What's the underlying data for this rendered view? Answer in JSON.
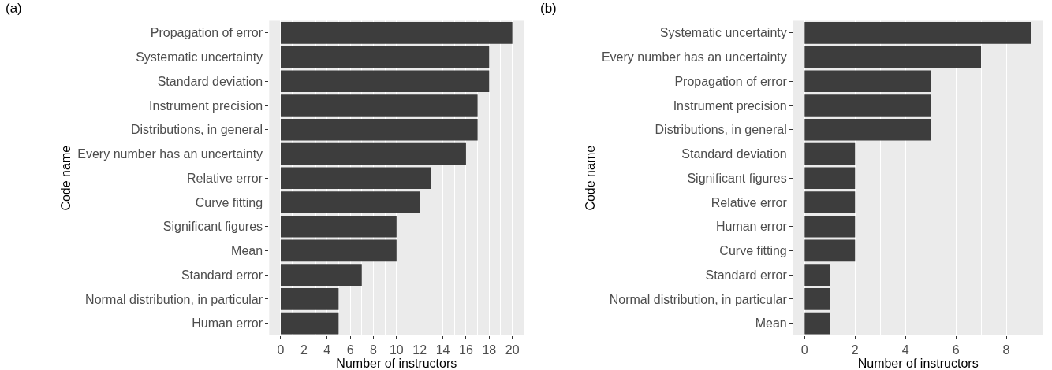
{
  "chart_data": [
    {
      "type": "bar",
      "orientation": "horizontal",
      "title": "(a)",
      "xlabel": "Number of instructors",
      "ylabel": "Code name",
      "categories": [
        "Propagation of error",
        "Systematic uncertainty",
        "Standard deviation",
        "Instrument precision",
        "Distributions, in general",
        "Every number has an uncertainty",
        "Relative error",
        "Curve fitting",
        "Significant figures",
        "Mean",
        "Standard error",
        "Normal distribution, in particular",
        "Human error"
      ],
      "values": [
        20,
        18,
        18,
        17,
        17,
        16,
        13,
        12,
        10,
        10,
        7,
        5,
        5
      ],
      "color": "#3d3d3d",
      "xlim": [
        -1,
        21
      ],
      "xticks": [
        0,
        2,
        4,
        6,
        8,
        10,
        12,
        14,
        16,
        18,
        20
      ],
      "grid": "x"
    },
    {
      "type": "bar",
      "orientation": "horizontal",
      "title": "(b)",
      "xlabel": "Number of instructors",
      "ylabel": "Code name",
      "categories": [
        "Systematic uncertainty",
        "Every number has an uncertainty",
        "Propagation of error",
        "Instrument precision",
        "Distributions, in general",
        "Standard deviation",
        "Significant figures",
        "Relative error",
        "Human error",
        "Curve fitting",
        "Standard error",
        "Normal distribution, in particular",
        "Mean"
      ],
      "values": [
        9,
        7,
        5,
        5,
        5,
        2,
        2,
        2,
        2,
        2,
        1,
        1,
        1
      ],
      "color": "#3d3d3d",
      "xlim": [
        -0.45,
        9.45
      ],
      "xticks": [
        0,
        2,
        4,
        6,
        8
      ],
      "grid": "x"
    }
  ]
}
